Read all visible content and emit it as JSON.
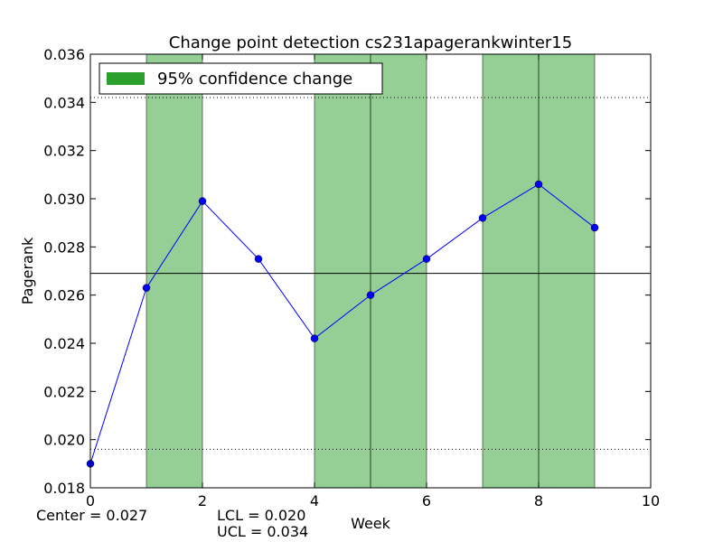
{
  "chart_data": {
    "type": "line",
    "title": "Change point detection cs231apagerankwinter15",
    "xlabel": "Week",
    "ylabel": "Pagerank",
    "xlim": [
      0,
      10
    ],
    "ylim": [
      0.018,
      0.036
    ],
    "xticks": [
      0,
      2,
      4,
      6,
      8,
      10
    ],
    "yticks": [
      "0.018",
      "0.020",
      "0.022",
      "0.024",
      "0.026",
      "0.028",
      "0.030",
      "0.032",
      "0.034",
      "0.036"
    ],
    "series": [
      {
        "x": [
          0,
          1,
          2,
          3,
          4,
          5,
          6,
          7,
          8,
          9
        ],
        "values": [
          0.019,
          0.0263,
          0.0299,
          0.0275,
          0.0242,
          0.026,
          0.0275,
          0.0292,
          0.0306,
          0.0288
        ],
        "color": "#0000ff"
      }
    ],
    "center_line": 0.0269,
    "lcl_line": 0.0196,
    "ucl_line": 0.0342,
    "change_regions": [
      [
        1,
        2
      ],
      [
        4,
        5
      ],
      [
        5,
        6
      ],
      [
        7,
        8
      ],
      [
        8,
        9
      ]
    ],
    "legend": {
      "label": "95% confidence change",
      "color": "#2ca02c",
      "position": "top-left"
    },
    "region_color": "#2ca02c"
  },
  "stats": {
    "center": "Center = 0.027",
    "lcl": "LCL = 0.020",
    "ucl": "UCL = 0.034"
  }
}
